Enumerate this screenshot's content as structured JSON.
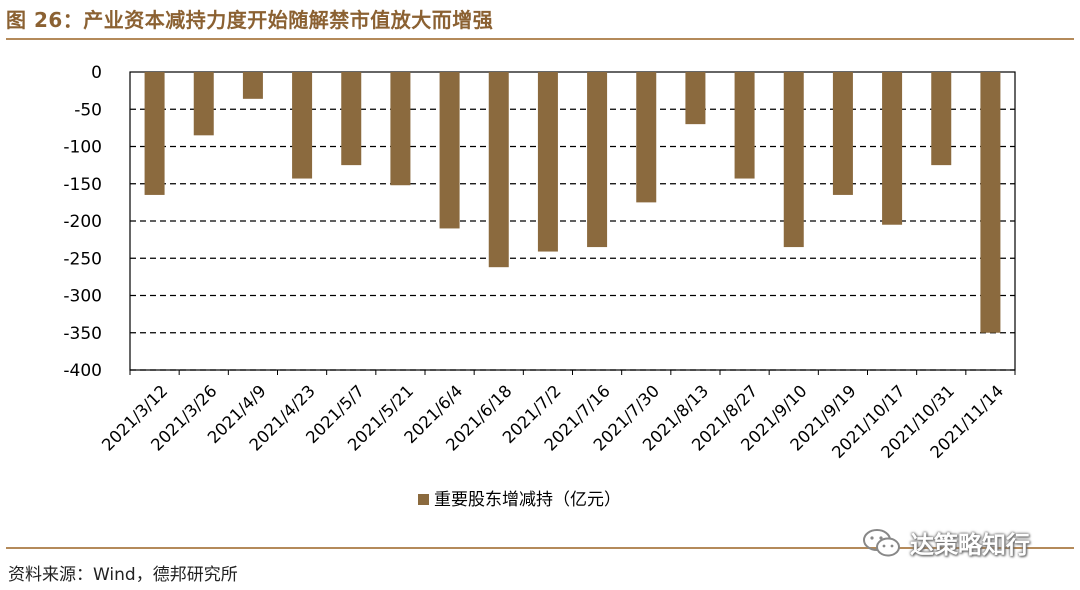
{
  "figure": {
    "title": "图 26：产业资本减持力度开始随解禁市值放大而增强",
    "source": "资料来源：Wind，德邦研究所",
    "watermark": "达策略知行"
  },
  "colors": {
    "bar": "#8B6A3E",
    "accent": "#8B6132",
    "rule": "#b48a5a"
  },
  "chart_data": {
    "type": "bar",
    "categories": [
      "2021/3/12",
      "2021/3/26",
      "2021/4/9",
      "2021/4/23",
      "2021/5/7",
      "2021/5/21",
      "2021/6/4",
      "2021/6/18",
      "2021/7/2",
      "2021/7/16",
      "2021/7/30",
      "2021/8/13",
      "2021/8/27",
      "2021/9/10",
      "2021/9/19",
      "2021/10/17",
      "2021/10/31",
      "2021/11/14"
    ],
    "series": [
      {
        "name": "重要股东增减持（亿元）",
        "values": [
          -165,
          -85,
          -36,
          -143,
          -125,
          -152,
          -210,
          -262,
          -241,
          -235,
          -175,
          -70,
          -143,
          -235,
          -165,
          -205,
          -125,
          -350
        ]
      }
    ],
    "yticks": [
      "0",
      "-50",
      "-100",
      "-150",
      "-200",
      "-250",
      "-300",
      "-350",
      "-400"
    ],
    "ylim": [
      -400,
      0
    ],
    "grid": "dashed horizontal",
    "legend_position": "bottom-center"
  }
}
